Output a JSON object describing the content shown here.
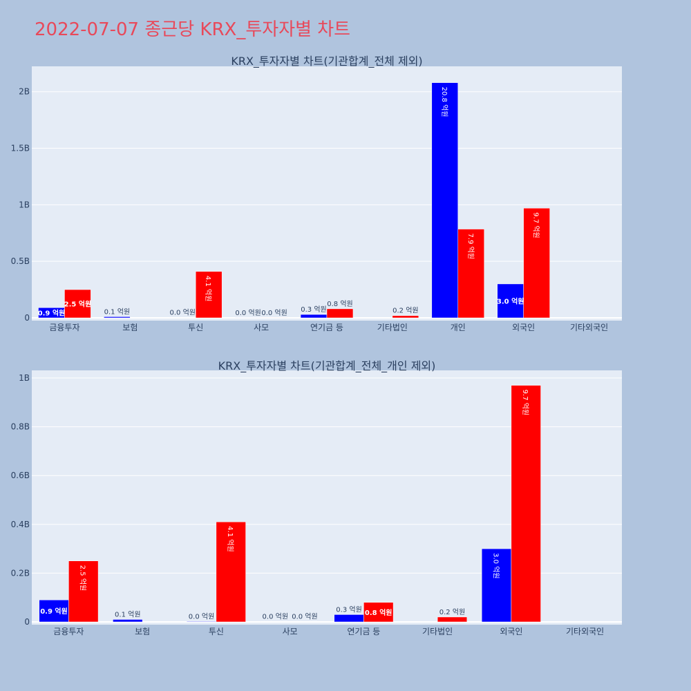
{
  "title": "2022-07-07 종근당 KRX_투자자별 차트",
  "colors": {
    "buy": "#0000ff",
    "sell": "#ff0000",
    "plot_bg": "#e5ecf6",
    "page_bg": "#b0c4de",
    "title": "#e8495a"
  },
  "chart_data": [
    {
      "type": "bar",
      "title": "KRX_투자자별 차트(기관합계_전체 제외)",
      "categories": [
        "금융투자",
        "보험",
        "투신",
        "사모",
        "연기금 등",
        "기타법인",
        "개인",
        "외국인",
        "기타외국인"
      ],
      "series": [
        {
          "values": [
            90000000,
            10000000,
            2000000,
            1000000,
            30000000,
            0,
            2080000000,
            300000000,
            0
          ],
          "labels": [
            "0.9 억원",
            "0.1 억원",
            "0.0 억원",
            "0.0 억원",
            "0.3 억원",
            "",
            "20.8 억원",
            "3.0 억원",
            ""
          ]
        },
        {
          "values": [
            250000000,
            0,
            410000000,
            1000000,
            80000000,
            20000000,
            785000000,
            970000000,
            0
          ],
          "labels": [
            "2.5 억원",
            "",
            "4.1 억원",
            "0.0 억원",
            "0.8 억원",
            "0.2 억원",
            "7.9 억원",
            "9.7 억원",
            ""
          ]
        }
      ],
      "ylim": [
        0,
        2200000000
      ],
      "yticks": [
        0,
        500000000,
        1000000000,
        1500000000,
        2000000000
      ],
      "ytick_labels": [
        "0",
        "0.5B",
        "1B",
        "1.5B",
        "2B"
      ],
      "grid": true
    },
    {
      "type": "bar",
      "title": "KRX_투자자별 차트(기관합계_전체_개인 제외)",
      "categories": [
        "금융투자",
        "보험",
        "투신",
        "사모",
        "연기금 등",
        "기타법인",
        "외국인",
        "기타외국인"
      ],
      "series": [
        {
          "values": [
            90000000,
            10000000,
            2000000,
            1000000,
            30000000,
            0,
            300000000,
            0
          ],
          "labels": [
            "0.9 억원",
            "0.1 억원",
            "0.0 억원",
            "0.0 억원",
            "0.3 억원",
            "",
            "3.0 억원",
            ""
          ]
        },
        {
          "values": [
            250000000,
            0,
            410000000,
            1000000,
            80000000,
            20000000,
            970000000,
            0
          ],
          "labels": [
            "2.5 억원",
            "",
            "4.1 억원",
            "0.0 억원",
            "0.8 억원",
            "0.2 억원",
            "9.7 억원",
            ""
          ]
        }
      ],
      "ylim": [
        0,
        1020000000
      ],
      "yticks": [
        0,
        200000000,
        400000000,
        600000000,
        800000000,
        1000000000
      ],
      "ytick_labels": [
        "0",
        "0.2B",
        "0.4B",
        "0.6B",
        "0.8B",
        "1B"
      ],
      "grid": true
    }
  ]
}
